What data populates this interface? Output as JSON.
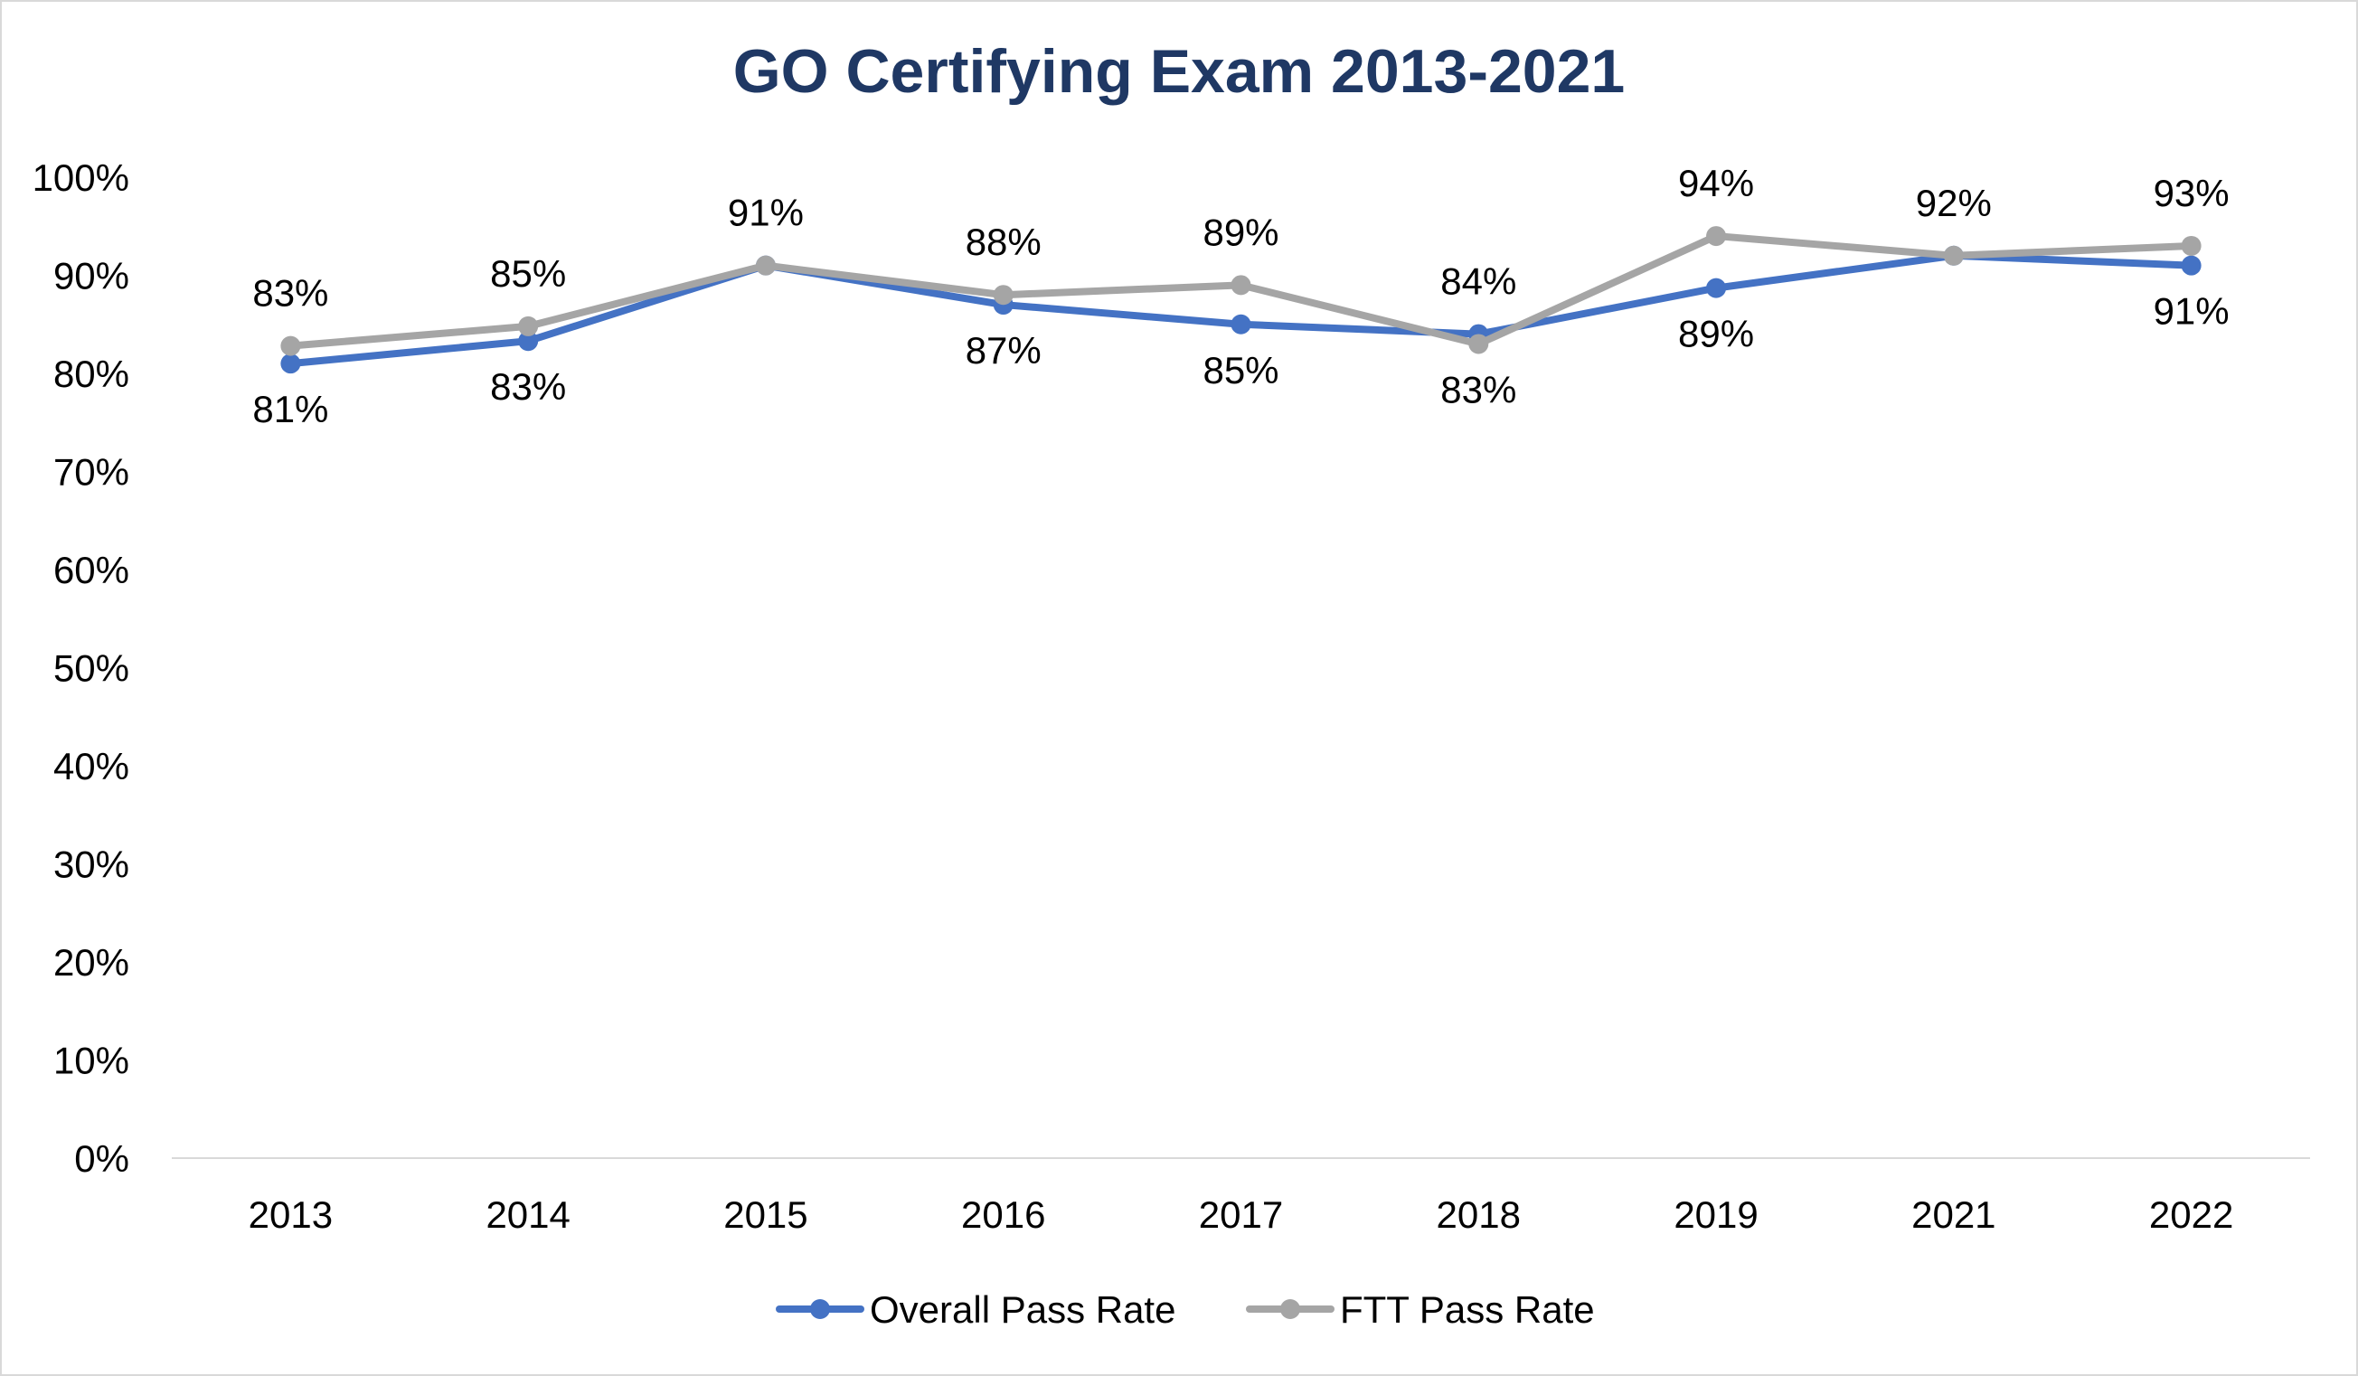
{
  "chart_data": {
    "type": "line",
    "title": "GO Certifying Exam 2013-2021",
    "xlabel": "",
    "ylabel": "",
    "categories": [
      "2013",
      "2014",
      "2015",
      "2016",
      "2017",
      "2018",
      "2019",
      "2021",
      "2022"
    ],
    "y_ticks": [
      "0%",
      "10%",
      "20%",
      "30%",
      "40%",
      "50%",
      "60%",
      "70%",
      "80%",
      "90%",
      "100%"
    ],
    "ylim": [
      0,
      100
    ],
    "grid": false,
    "legend_position": "bottom",
    "series": [
      {
        "name": "Overall Pass Rate",
        "color": "#4472c4",
        "values": [
          81,
          83.3,
          91,
          87,
          85,
          84,
          88.7,
          92,
          91
        ],
        "labels": [
          "81%",
          "83%",
          "",
          "87%",
          "85%",
          "",
          "89%",
          "",
          "91%"
        ],
        "label_side": [
          "below",
          "below",
          "",
          "below",
          "below",
          "",
          "below",
          "",
          "below"
        ]
      },
      {
        "name": "FTT Pass Rate",
        "color": "#a5a5a5",
        "values": [
          82.8,
          84.8,
          91,
          88,
          89,
          83,
          94,
          92,
          93
        ],
        "labels": [
          "83%",
          "85%",
          "91%",
          "88%",
          "89%",
          "83%",
          "94%",
          "92%",
          "93%"
        ],
        "label_side": [
          "above",
          "above",
          "above",
          "above",
          "above",
          "below",
          "above",
          "above",
          "above"
        ]
      }
    ],
    "extra_labels": [
      {
        "category_index": 5,
        "value": 84,
        "text": "84%",
        "side": "above"
      }
    ]
  }
}
